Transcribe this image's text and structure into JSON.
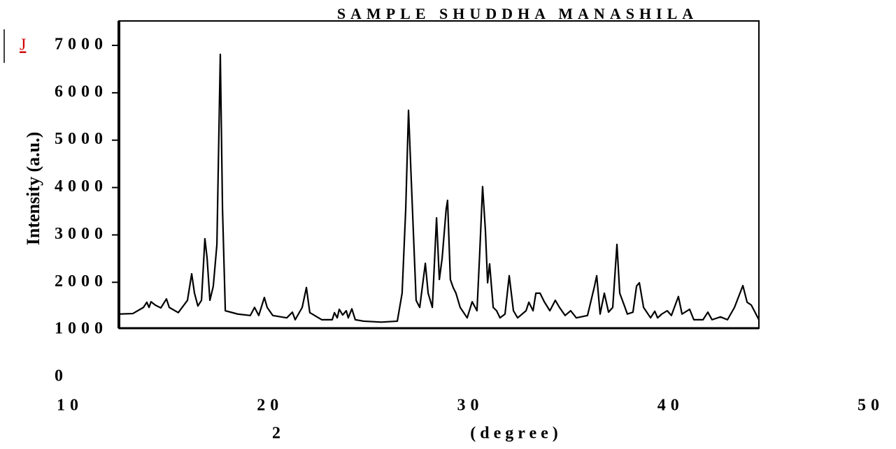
{
  "chart_data": {
    "type": "line",
    "title": "SAMPLE SHUDDHA MANASHILA",
    "link_text": "J",
    "y_label": "Intensity (a.u.)",
    "x_label": "2",
    "x_label_unit": "(degree)",
    "color": "#000000",
    "grid": false,
    "xlim": [
      10,
      50
    ],
    "xticks": [
      10,
      20,
      30,
      40,
      50
    ],
    "ylim": [
      0,
      7000
    ],
    "yticks": [
      0,
      1000,
      2000,
      3000,
      4000,
      5000,
      6000,
      7000
    ],
    "x": [
      12.45,
      13.14,
      13.67,
      13.84,
      13.95,
      14.05,
      14.26,
      14.54,
      14.82,
      14.96,
      15.41,
      15.87,
      16.08,
      16.22,
      16.39,
      16.57,
      16.74,
      16.85,
      16.99,
      17.16,
      17.34,
      17.51,
      17.62,
      17.76,
      18.38,
      19.01,
      19.22,
      19.43,
      19.71,
      19.85,
      20.13,
      20.83,
      21.11,
      21.25,
      21.6,
      21.81,
      21.98,
      22.58,
      23.1,
      23.21,
      23.35,
      23.45,
      23.62,
      23.8,
      23.9,
      24.08,
      24.25,
      24.67,
      25.55,
      26.35,
      26.59,
      26.77,
      26.91,
      27.05,
      27.29,
      27.47,
      27.75,
      27.89,
      28.1,
      28.31,
      28.45,
      28.59,
      28.79,
      28.86,
      29.0,
      29.14,
      29.28,
      29.49,
      29.84,
      30.09,
      30.33,
      30.47,
      30.61,
      30.75,
      30.86,
      30.96,
      31.14,
      31.31,
      31.48,
      31.73,
      31.94,
      32.15,
      32.36,
      32.78,
      32.92,
      33.13,
      33.27,
      33.48,
      33.69,
      33.97,
      34.24,
      34.45,
      34.73,
      35.01,
      35.29,
      35.85,
      36.2,
      36.31,
      36.48,
      36.69,
      36.9,
      37.11,
      37.32,
      37.46,
      37.67,
      37.84,
      38.12,
      38.3,
      38.44,
      38.65,
      39.0,
      39.21,
      39.35,
      39.56,
      39.83,
      40.04,
      40.39,
      40.57,
      40.95,
      41.16,
      41.62,
      41.86,
      42.07,
      42.49,
      42.84,
      43.19,
      43.61,
      43.82,
      44.03,
      44.41
    ],
    "values": [
      1330,
      1340,
      1470,
      1580,
      1470,
      1590,
      1520,
      1460,
      1650,
      1470,
      1360,
      1620,
      2180,
      1770,
      1500,
      1620,
      2920,
      2510,
      1620,
      1920,
      2800,
      6810,
      3540,
      1400,
      1330,
      1300,
      1470,
      1300,
      1680,
      1470,
      1300,
      1250,
      1370,
      1210,
      1470,
      1890,
      1360,
      1210,
      1210,
      1360,
      1250,
      1430,
      1310,
      1400,
      1250,
      1440,
      1210,
      1180,
      1160,
      1180,
      1770,
      3540,
      5630,
      4130,
      1620,
      1470,
      2400,
      1770,
      1470,
      3360,
      2060,
      2510,
      3540,
      3730,
      2060,
      1890,
      1770,
      1470,
      1250,
      1590,
      1400,
      2650,
      4020,
      3100,
      1990,
      2390,
      1470,
      1400,
      1250,
      1330,
      2140,
      1400,
      1250,
      1400,
      1580,
      1400,
      1770,
      1770,
      1590,
      1400,
      1620,
      1470,
      1300,
      1400,
      1250,
      1300,
      1920,
      2140,
      1330,
      1770,
      1370,
      1470,
      2800,
      1770,
      1530,
      1330,
      1370,
      1920,
      1990,
      1470,
      1250,
      1390,
      1250,
      1330,
      1400,
      1300,
      1700,
      1330,
      1430,
      1210,
      1210,
      1370,
      1210,
      1270,
      1210,
      1470,
      1930,
      1580,
      1520,
      1210
    ]
  }
}
